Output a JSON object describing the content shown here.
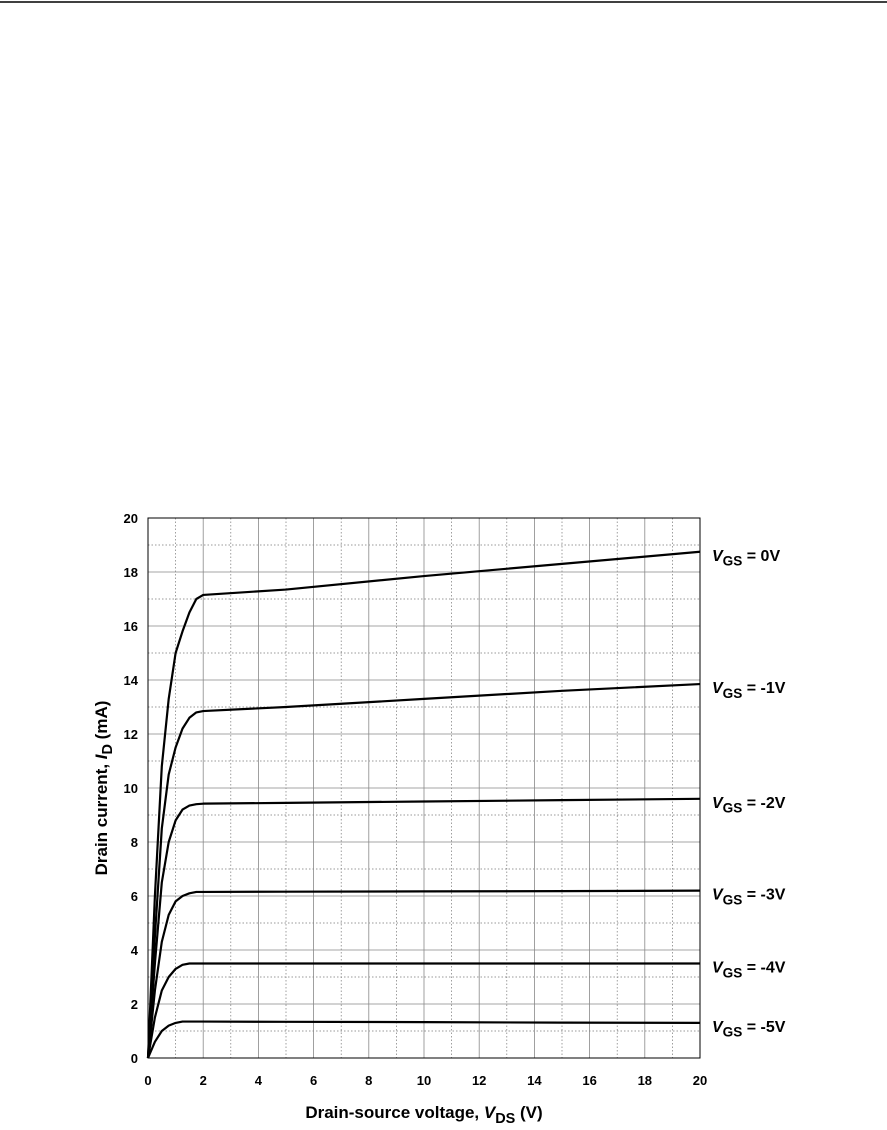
{
  "chart_data": {
    "type": "line",
    "xlabel": "Drain-source voltage, VDS (V)",
    "ylabel": "Drain current, ID (mA)",
    "x": [
      0,
      0.25,
      0.5,
      0.75,
      1,
      1.25,
      1.5,
      1.75,
      2,
      5,
      10,
      15,
      20
    ],
    "series": [
      {
        "name": "VGS = 0V",
        "color": "#000000",
        "values": [
          0,
          6,
          10.8,
          13.3,
          15,
          15.8,
          16.5,
          17,
          17.15,
          17.35,
          17.85,
          18.3,
          18.75
        ]
      },
      {
        "name": "VGS = -1V",
        "color": "#000000",
        "values": [
          0,
          4.5,
          8.5,
          10.5,
          11.5,
          12.2,
          12.6,
          12.8,
          12.85,
          13,
          13.3,
          13.6,
          13.85
        ]
      },
      {
        "name": "VGS = -2V",
        "color": "#000000",
        "values": [
          0,
          3.5,
          6.5,
          8,
          8.8,
          9.2,
          9.35,
          9.4,
          9.42,
          9.45,
          9.5,
          9.55,
          9.6
        ]
      },
      {
        "name": "VGS = -3V",
        "color": "#000000",
        "values": [
          0,
          2.5,
          4.3,
          5.3,
          5.8,
          6,
          6.1,
          6.15,
          6.15,
          6.16,
          6.17,
          6.18,
          6.2
        ]
      },
      {
        "name": "VGS = -4V",
        "color": "#000000",
        "values": [
          0,
          1.5,
          2.5,
          3,
          3.3,
          3.45,
          3.5,
          3.5,
          3.5,
          3.5,
          3.5,
          3.5,
          3.5
        ]
      },
      {
        "name": "VGS = -5V",
        "color": "#000000",
        "values": [
          0,
          0.6,
          1,
          1.2,
          1.3,
          1.35,
          1.35,
          1.35,
          1.35,
          1.34,
          1.33,
          1.31,
          1.3
        ]
      }
    ],
    "xlim": [
      0,
      20
    ],
    "xticks": [
      0,
      2,
      4,
      6,
      8,
      10,
      12,
      14,
      16,
      18,
      20
    ],
    "ylim": [
      0,
      20
    ],
    "yticks": [
      0,
      2,
      4,
      6,
      8,
      10,
      12,
      14,
      16,
      18,
      20
    ],
    "grid": true
  }
}
